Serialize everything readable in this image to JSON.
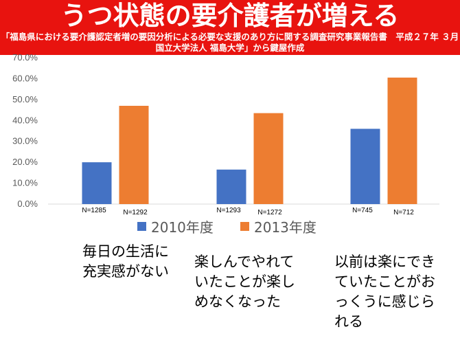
{
  "header": {
    "title": "うつ状態の要介護者が増える",
    "subtitle": "「福島県における要介護認定者増の要因分析による必要な支援のあり方に関する調査研究事業報告書　平成２７年 ３月　国立大学法人 福島大学」から鍵屋作成"
  },
  "chart_data": {
    "type": "bar",
    "categories": [
      "毎日の生活に充実感がない",
      "楽しんでやれていたことが楽しめなくなった",
      "以前は楽にできていたことがおっくうに感じられる"
    ],
    "series": [
      {
        "name": "2010年度",
        "color": "#4472c4",
        "values": [
          0.2,
          0.165,
          0.36
        ],
        "n_labels": [
          "N=1285",
          "N=1293",
          "N=745"
        ]
      },
      {
        "name": "2013年度",
        "color": "#ed7d31",
        "values": [
          0.47,
          0.435,
          0.605
        ],
        "n_labels": [
          "N=1292",
          "N=1272",
          "N=712"
        ]
      }
    ],
    "ylim": [
      0,
      0.7
    ],
    "yticks": [
      "0.0%",
      "10.0%",
      "20.0%",
      "30.0%",
      "40.0%",
      "50.0%",
      "60.0%",
      "70.0%"
    ],
    "grid": false,
    "legend": "bottom"
  },
  "descriptions": [
    "毎日の生活に充実感がない",
    "楽しんでやれていたことが楽しめなくなった",
    "以前は楽にできていたことがおっくうに感じられる"
  ]
}
